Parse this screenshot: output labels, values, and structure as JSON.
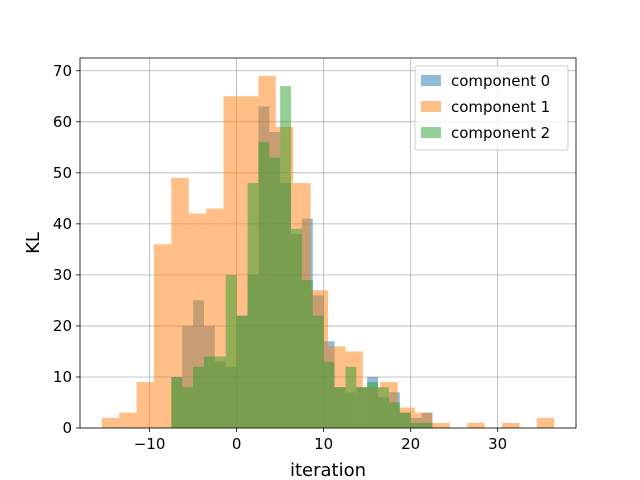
{
  "chart_data": {
    "type": "histogram",
    "xlabel": "iteration",
    "ylabel": "KL",
    "xlim": [
      -18,
      39
    ],
    "ylim": [
      0,
      72.5
    ],
    "xticks": [
      -10,
      0,
      10,
      20,
      30
    ],
    "xtick_labels": [
      "−10",
      "0",
      "10",
      "20",
      "30"
    ],
    "yticks": [
      0,
      10,
      20,
      30,
      40,
      50,
      60,
      70
    ],
    "ytick_labels": [
      "0",
      "10",
      "20",
      "30",
      "40",
      "50",
      "60",
      "70"
    ],
    "grid": true,
    "legend_position": "top-right",
    "bar_opacity": 0.5,
    "series": [
      {
        "name": "component 0",
        "color": "#1f77b4",
        "bins": [
          [
            -7.5,
            -6.25,
            10
          ],
          [
            -6.25,
            -5.0,
            20
          ],
          [
            -5.0,
            -3.75,
            25
          ],
          [
            -3.75,
            -2.5,
            20
          ],
          [
            -2.5,
            -1.25,
            13
          ],
          [
            -1.25,
            0.0,
            12
          ],
          [
            0.0,
            1.25,
            22
          ],
          [
            1.25,
            2.5,
            30
          ],
          [
            2.5,
            3.75,
            63
          ],
          [
            3.75,
            5.0,
            58
          ],
          [
            5.0,
            6.25,
            48
          ],
          [
            6.25,
            7.5,
            38
          ],
          [
            7.5,
            8.75,
            41
          ],
          [
            8.75,
            10.0,
            26
          ],
          [
            10.0,
            11.25,
            17
          ],
          [
            11.25,
            12.5,
            8
          ],
          [
            12.5,
            13.75,
            7
          ],
          [
            13.75,
            15.0,
            8
          ],
          [
            15.0,
            16.25,
            10
          ],
          [
            16.25,
            17.5,
            6
          ],
          [
            17.5,
            18.75,
            7
          ],
          [
            18.75,
            20.0,
            3
          ],
          [
            20.0,
            21.25,
            2
          ],
          [
            21.25,
            22.5,
            3
          ]
        ]
      },
      {
        "name": "component 1",
        "color": "#ff7f0e",
        "bins": [
          [
            -15.5,
            -13.5,
            2
          ],
          [
            -13.5,
            -11.5,
            3
          ],
          [
            -11.5,
            -9.5,
            9
          ],
          [
            -9.5,
            -7.5,
            36
          ],
          [
            -7.5,
            -5.5,
            49
          ],
          [
            -5.5,
            -3.5,
            42
          ],
          [
            -3.5,
            -1.5,
            43
          ],
          [
            -1.5,
            0.5,
            65
          ],
          [
            0.5,
            2.5,
            65
          ],
          [
            2.5,
            4.5,
            69
          ],
          [
            4.5,
            6.5,
            59
          ],
          [
            6.5,
            8.5,
            48
          ],
          [
            8.5,
            10.5,
            27
          ],
          [
            10.5,
            12.5,
            16
          ],
          [
            12.5,
            14.5,
            15
          ],
          [
            14.5,
            16.5,
            8
          ],
          [
            16.5,
            18.5,
            9
          ],
          [
            18.5,
            20.5,
            4
          ],
          [
            20.5,
            22.5,
            3
          ],
          [
            22.5,
            24.5,
            1
          ],
          [
            24.5,
            26.5,
            0
          ],
          [
            26.5,
            28.5,
            1
          ],
          [
            28.5,
            30.5,
            0
          ],
          [
            30.5,
            32.5,
            1
          ],
          [
            32.5,
            34.5,
            0
          ],
          [
            34.5,
            36.5,
            2
          ]
        ]
      },
      {
        "name": "component 2",
        "color": "#2ca02c",
        "bins": [
          [
            -7.5,
            -6.25,
            10
          ],
          [
            -6.25,
            -5.0,
            8
          ],
          [
            -5.0,
            -3.75,
            12
          ],
          [
            -3.75,
            -2.5,
            14
          ],
          [
            -2.5,
            -1.25,
            14
          ],
          [
            -1.25,
            0.0,
            30
          ],
          [
            0.0,
            1.25,
            22
          ],
          [
            1.25,
            2.5,
            48
          ],
          [
            2.5,
            3.75,
            56
          ],
          [
            3.75,
            5.0,
            53
          ],
          [
            5.0,
            6.25,
            67
          ],
          [
            6.25,
            7.5,
            39
          ],
          [
            7.5,
            8.75,
            29
          ],
          [
            8.75,
            10.0,
            22
          ],
          [
            10.0,
            11.25,
            13
          ],
          [
            11.25,
            12.5,
            8
          ],
          [
            12.5,
            13.75,
            12
          ],
          [
            13.75,
            15.0,
            8
          ],
          [
            15.0,
            16.25,
            9
          ],
          [
            16.25,
            17.5,
            8
          ],
          [
            17.5,
            18.75,
            5
          ],
          [
            18.75,
            20.0,
            3
          ],
          [
            20.0,
            21.25,
            1
          ],
          [
            21.25,
            22.5,
            1
          ]
        ]
      }
    ]
  }
}
